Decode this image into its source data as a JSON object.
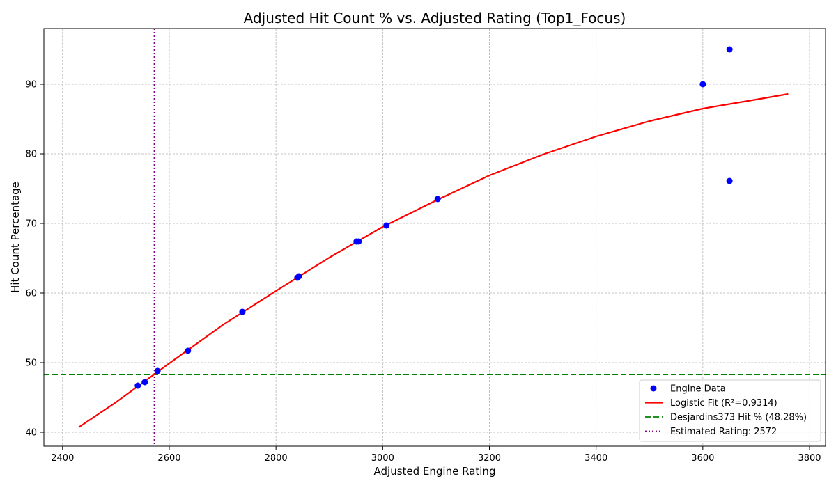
{
  "chart_data": {
    "type": "scatter",
    "title": "Adjusted Hit Count % vs. Adjusted Rating (Top1_Focus)",
    "xlabel": "Adjusted Engine Rating",
    "ylabel": "Hit Count Percentage",
    "xlim": [
      2365,
      3830
    ],
    "ylim": [
      38,
      98
    ],
    "xticks": [
      2400,
      2600,
      2800,
      3000,
      3200,
      3400,
      3600,
      3800
    ],
    "yticks": [
      40,
      50,
      60,
      70,
      80,
      90
    ],
    "grid": true,
    "legend_position": "bottom-right",
    "series": [
      {
        "name": "Engine Data",
        "kind": "scatter",
        "color": "#0000ff",
        "points": [
          {
            "x": 2541,
            "y": 46.7
          },
          {
            "x": 2554,
            "y": 47.2
          },
          {
            "x": 2578,
            "y": 48.8
          },
          {
            "x": 2635,
            "y": 51.7
          },
          {
            "x": 2737,
            "y": 57.3
          },
          {
            "x": 2840,
            "y": 62.2
          },
          {
            "x": 2843,
            "y": 62.4
          },
          {
            "x": 2951,
            "y": 67.4
          },
          {
            "x": 2955,
            "y": 67.4
          },
          {
            "x": 3007,
            "y": 69.7
          },
          {
            "x": 3103,
            "y": 73.5
          },
          {
            "x": 3600,
            "y": 90.0
          },
          {
            "x": 3650,
            "y": 95.0
          },
          {
            "x": 3650,
            "y": 76.1
          }
        ]
      },
      {
        "name": "Logistic Fit (R²=0.9314)",
        "kind": "line",
        "color": "#ff0000",
        "style": "solid",
        "points": [
          {
            "x": 2430,
            "y": 40.7
          },
          {
            "x": 2500,
            "y": 44.3
          },
          {
            "x": 2600,
            "y": 49.9
          },
          {
            "x": 2700,
            "y": 55.4
          },
          {
            "x": 2800,
            "y": 60.3
          },
          {
            "x": 2900,
            "y": 65.1
          },
          {
            "x": 3000,
            "y": 69.5
          },
          {
            "x": 3100,
            "y": 73.3
          },
          {
            "x": 3200,
            "y": 76.9
          },
          {
            "x": 3300,
            "y": 79.9
          },
          {
            "x": 3400,
            "y": 82.5
          },
          {
            "x": 3500,
            "y": 84.7
          },
          {
            "x": 3600,
            "y": 86.5
          },
          {
            "x": 3700,
            "y": 87.8
          },
          {
            "x": 3760,
            "y": 88.6
          }
        ]
      },
      {
        "name": "Desjardins373 Hit % (48.28%)",
        "kind": "hline",
        "color": "#008000",
        "style": "dashed",
        "y": 48.28
      },
      {
        "name": "Estimated Rating: 2572",
        "kind": "vline",
        "color": "#800080",
        "style": "dotted",
        "x": 2572
      }
    ]
  }
}
